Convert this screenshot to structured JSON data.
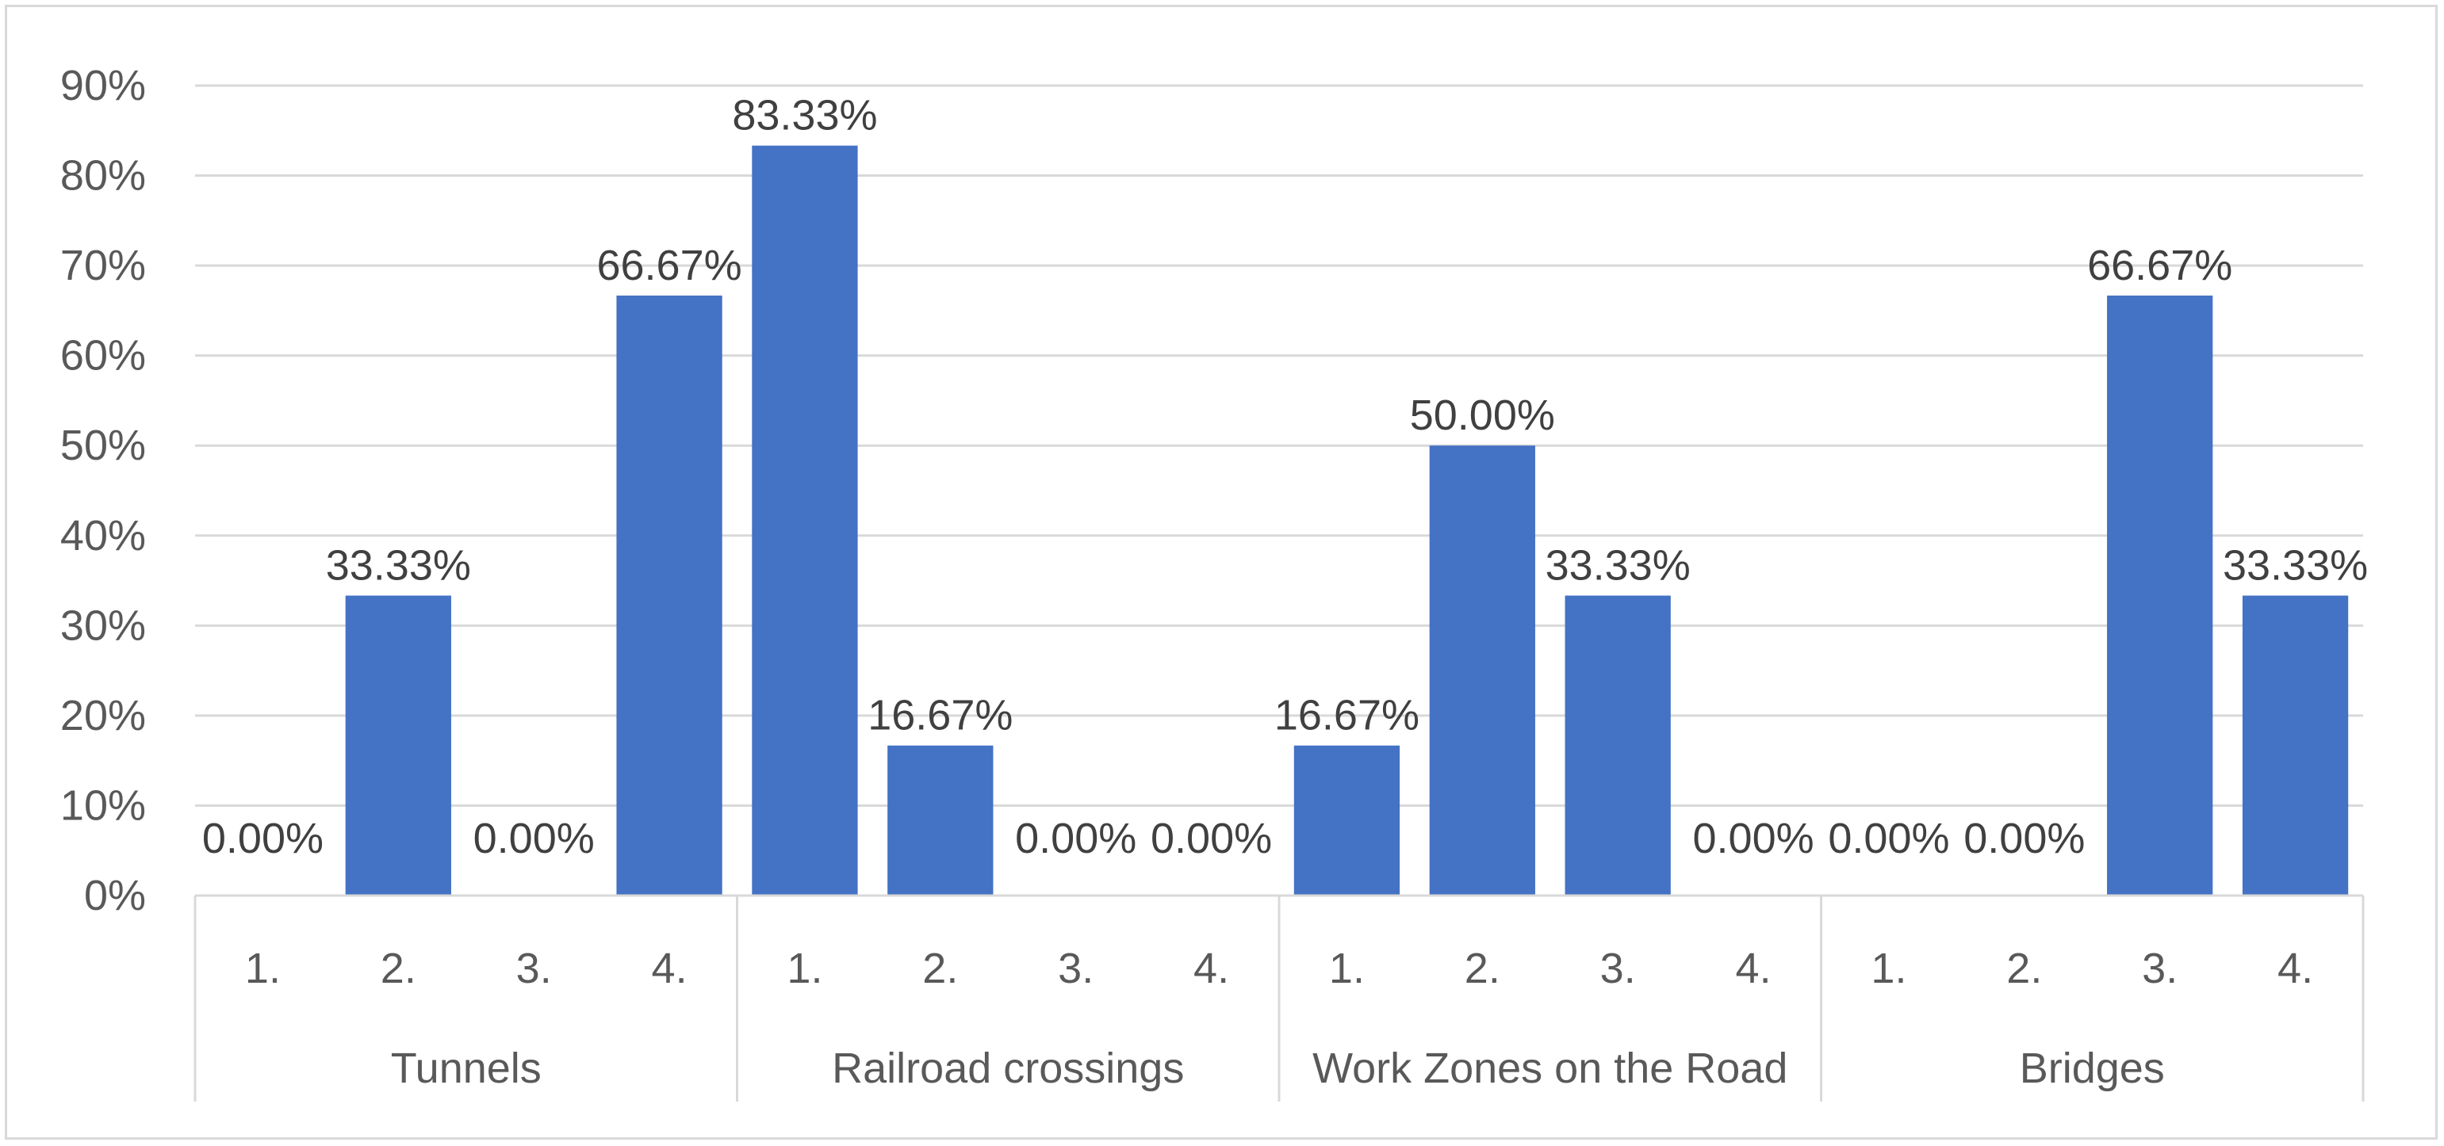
{
  "chart_data": {
    "type": "bar",
    "title": "",
    "xlabel": "",
    "ylabel": "",
    "ylim": [
      0,
      90
    ],
    "y_ticks": [
      "0%",
      "10%",
      "20%",
      "30%",
      "40%",
      "50%",
      "60%",
      "70%",
      "80%",
      "90%"
    ],
    "grid": true,
    "legend": "none",
    "bar_color": "#4472c4",
    "groups": [
      {
        "name": "Tunnels",
        "categories": [
          "1.",
          "2.",
          "3.",
          "4."
        ],
        "values": [
          0.0,
          33.33,
          0.0,
          66.67
        ],
        "labels": [
          "0.00%",
          "33.33%",
          "0.00%",
          "66.67%"
        ]
      },
      {
        "name": "Railroad crossings",
        "categories": [
          "1.",
          "2.",
          "3.",
          "4."
        ],
        "values": [
          83.33,
          16.67,
          0.0,
          0.0
        ],
        "labels": [
          "83.33%",
          "16.67%",
          "0.00%",
          "0.00%"
        ]
      },
      {
        "name": "Work Zones on the Road",
        "categories": [
          "1.",
          "2.",
          "3.",
          "4."
        ],
        "values": [
          16.67,
          50.0,
          33.33,
          0.0
        ],
        "labels": [
          "16.67%",
          "50.00%",
          "33.33%",
          "0.00%"
        ]
      },
      {
        "name": "Bridges",
        "categories": [
          "1.",
          "2.",
          "3.",
          "4."
        ],
        "values": [
          0.0,
          0.0,
          66.67,
          33.33
        ],
        "labels": [
          "0.00%",
          "0.00%",
          "66.67%",
          "33.33%"
        ]
      }
    ]
  }
}
